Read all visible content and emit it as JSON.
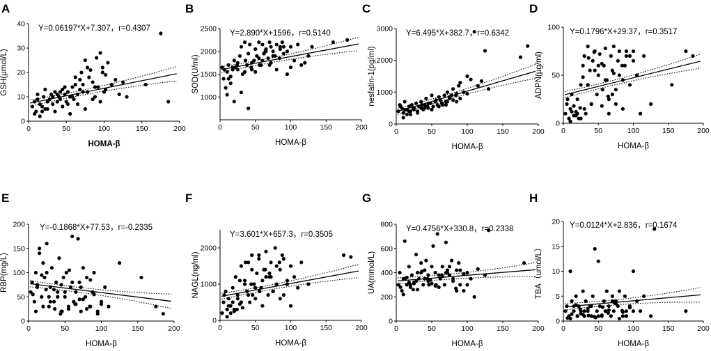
{
  "chart_data": [
    {
      "panel": "A",
      "type": "scatter",
      "equation": "Y=0.06197*X+7.307，r=0.4307",
      "slope": 0.06197,
      "intercept": 7.307,
      "xlabel": "HOMA-β",
      "ylabel": "GSH(μmol/L)",
      "xlim": [
        0,
        200
      ],
      "ylim": [
        0,
        40
      ],
      "xticks": [
        0,
        50,
        100,
        150,
        200
      ],
      "yticks": [
        0,
        10,
        20,
        30,
        40
      ],
      "x": [
        5,
        8,
        10,
        12,
        15,
        18,
        20,
        22,
        25,
        28,
        30,
        32,
        35,
        38,
        40,
        42,
        45,
        48,
        50,
        52,
        55,
        58,
        60,
        62,
        65,
        68,
        70,
        72,
        75,
        78,
        80,
        85,
        88,
        90,
        95,
        98,
        100,
        102,
        105,
        110,
        115,
        120,
        125,
        130,
        155,
        175,
        185,
        8,
        15,
        25,
        35,
        45,
        55,
        65,
        75,
        85,
        95,
        12,
        22,
        32,
        42,
        52,
        62,
        72,
        82,
        92,
        102,
        28,
        38,
        48,
        58,
        68,
        78,
        88,
        98,
        18
      ],
      "y": [
        6,
        8,
        4,
        9,
        7,
        6,
        10,
        5,
        8,
        9,
        11,
        7,
        12,
        8,
        10,
        9,
        13,
        11,
        8,
        12,
        10,
        14,
        9,
        15,
        11,
        13,
        20,
        12,
        25,
        22,
        18,
        16,
        14,
        26,
        28,
        20,
        12,
        19,
        24,
        15,
        17,
        11,
        16,
        10,
        15,
        36,
        8,
        3,
        2,
        5,
        4,
        6,
        3,
        7,
        5,
        9,
        8,
        11,
        13,
        10,
        12,
        7,
        18,
        15,
        21,
        14,
        13,
        9,
        11,
        14,
        10,
        17,
        12,
        10,
        22,
        4
      ]
    },
    {
      "panel": "B",
      "type": "scatter",
      "equation": "Y=2.890*X+1596，r=0.5140",
      "slope": 2.89,
      "intercept": 1596,
      "xlabel": "HOMA-β",
      "ylabel": "SOD(U/ml)",
      "xlim": [
        0,
        200
      ],
      "ylim": [
        500,
        2500
      ],
      "xticks": [
        0,
        50,
        100,
        150,
        200
      ],
      "yticks": [
        1000,
        1500,
        2000,
        2500
      ],
      "x": [
        3,
        5,
        8,
        10,
        12,
        15,
        18,
        20,
        22,
        25,
        28,
        30,
        32,
        35,
        38,
        40,
        42,
        45,
        48,
        50,
        52,
        55,
        58,
        60,
        62,
        65,
        68,
        70,
        72,
        75,
        78,
        80,
        85,
        88,
        90,
        95,
        100,
        105,
        110,
        115,
        120,
        125,
        130,
        160,
        180,
        10,
        20,
        30,
        40,
        50,
        60,
        70,
        80,
        90,
        100,
        15,
        25,
        35,
        45,
        55,
        65,
        75,
        85,
        95,
        6,
        12,
        18,
        24,
        36,
        44,
        56,
        64,
        72,
        84
      ],
      "y": [
        1650,
        1400,
        1200,
        1550,
        1700,
        1300,
        1600,
        1800,
        1650,
        1750,
        1900,
        2100,
        1500,
        2200,
        1700,
        1950,
        2150,
        1600,
        1800,
        2050,
        1900,
        2200,
        1700,
        2150,
        1950,
        2050,
        1850,
        2200,
        2100,
        2000,
        1900,
        2150,
        2050,
        2200,
        1950,
        2000,
        2100,
        1800,
        2150,
        1700,
        1750,
        1900,
        2100,
        2200,
        2250,
        1050,
        900,
        1100,
        750,
        1550,
        1800,
        1700,
        1600,
        2100,
        1650,
        1450,
        1600,
        1550,
        1750,
        1850,
        2000,
        1900,
        2100,
        1500,
        1600,
        1400,
        1650,
        1700,
        1800,
        1650,
        1700,
        2000,
        1750,
        1850
      ]
    },
    {
      "panel": "C",
      "type": "scatter",
      "equation": "Y=6.495*X+382.7，r=0.6342",
      "slope": 6.495,
      "intercept": 382.7,
      "xlabel": "HOMA-β",
      "ylabel": "nesfatin-1(pg/ml)",
      "xlim": [
        0,
        200
      ],
      "ylim": [
        0,
        3000
      ],
      "xticks": [
        0,
        50,
        100,
        150,
        200
      ],
      "yticks": [
        0,
        1000,
        2000,
        3000
      ],
      "x": [
        3,
        5,
        8,
        10,
        12,
        15,
        18,
        20,
        22,
        25,
        28,
        30,
        32,
        35,
        38,
        40,
        42,
        45,
        48,
        50,
        52,
        55,
        58,
        60,
        62,
        65,
        68,
        70,
        72,
        75,
        78,
        80,
        85,
        88,
        90,
        95,
        100,
        105,
        110,
        115,
        120,
        125,
        130,
        175,
        185,
        10,
        20,
        30,
        40,
        50,
        60,
        70,
        80,
        90,
        100,
        15,
        25,
        35,
        45,
        55,
        65,
        75,
        85,
        95,
        6,
        12,
        18,
        24,
        36,
        44,
        56,
        64,
        72,
        84
      ],
      "y": [
        400,
        600,
        500,
        350,
        700,
        450,
        550,
        300,
        600,
        500,
        650,
        400,
        550,
        700,
        450,
        600,
        800,
        500,
        650,
        900,
        550,
        700,
        600,
        850,
        750,
        650,
        900,
        700,
        1000,
        800,
        900,
        1100,
        950,
        1200,
        1300,
        1000,
        1500,
        1400,
        2900,
        1200,
        1350,
        2300,
        1100,
        2100,
        2450,
        200,
        400,
        350,
        500,
        450,
        550,
        600,
        750,
        800,
        950,
        300,
        450,
        500,
        650,
        700,
        600,
        850,
        700,
        1000,
        550,
        450,
        400,
        500,
        600,
        550,
        750,
        650,
        700,
        900
      ]
    },
    {
      "panel": "D",
      "type": "scatter",
      "equation": "Y=0.1796*X+29.37，r=0.3517",
      "slope": 0.1796,
      "intercept": 29.37,
      "xlabel": "HOMA-β",
      "ylabel": "ADPN(μg/ml)",
      "xlim": [
        0,
        200
      ],
      "ylim": [
        0,
        100
      ],
      "xticks": [
        0,
        50,
        100,
        150,
        200
      ],
      "yticks": [
        0,
        50,
        100
      ],
      "x": [
        3,
        5,
        8,
        10,
        12,
        15,
        18,
        20,
        22,
        25,
        28,
        30,
        32,
        35,
        38,
        40,
        42,
        45,
        48,
        50,
        52,
        55,
        58,
        60,
        62,
        65,
        68,
        70,
        72,
        75,
        78,
        80,
        85,
        88,
        90,
        95,
        100,
        105,
        110,
        115,
        125,
        155,
        175,
        185,
        10,
        20,
        30,
        40,
        50,
        60,
        70,
        80,
        90,
        100,
        15,
        25,
        35,
        45,
        55,
        65,
        75,
        85,
        95,
        6,
        12,
        18,
        24,
        36,
        44,
        56,
        64,
        72,
        84,
        28
      ],
      "y": [
        10,
        20,
        5,
        15,
        30,
        8,
        12,
        25,
        5,
        40,
        60,
        70,
        10,
        80,
        55,
        20,
        65,
        75,
        30,
        50,
        72,
        18,
        60,
        78,
        45,
        25,
        70,
        55,
        80,
        35,
        65,
        75,
        15,
        60,
        70,
        40,
        75,
        50,
        10,
        70,
        20,
        40,
        75,
        70,
        2,
        10,
        15,
        20,
        60,
        45,
        30,
        50,
        75,
        65,
        18,
        5,
        40,
        55,
        62,
        10,
        20,
        45,
        70,
        25,
        12,
        8,
        16,
        68,
        74,
        35,
        28,
        52,
        60,
        48
      ]
    },
    {
      "panel": "E",
      "type": "scatter",
      "equation": "Y=-0.1868*X+77.53，r=-0.2335",
      "slope": -0.1868,
      "intercept": 77.53,
      "xlabel": "HOMA-β",
      "ylabel": "RBP(mg/L)",
      "xlim": [
        0,
        200
      ],
      "ylim": [
        0,
        200
      ],
      "xticks": [
        0,
        50,
        100,
        150,
        200
      ],
      "yticks": [
        0,
        50,
        100,
        150,
        200
      ],
      "x": [
        3,
        5,
        8,
        10,
        12,
        15,
        18,
        20,
        22,
        25,
        28,
        30,
        32,
        35,
        38,
        40,
        42,
        45,
        48,
        50,
        52,
        55,
        58,
        60,
        62,
        65,
        68,
        70,
        72,
        75,
        78,
        80,
        85,
        88,
        90,
        95,
        100,
        105,
        110,
        125,
        155,
        175,
        185,
        10,
        20,
        30,
        40,
        50,
        60,
        70,
        80,
        90,
        100,
        15,
        25,
        35,
        45,
        55,
        65,
        75,
        85,
        95,
        6,
        12,
        18,
        24,
        36,
        44,
        56,
        64,
        72,
        84,
        28,
        46
      ],
      "y": [
        60,
        80,
        40,
        100,
        70,
        150,
        50,
        120,
        90,
        160,
        30,
        70,
        110,
        40,
        80,
        60,
        130,
        20,
        90,
        50,
        100,
        30,
        70,
        175,
        40,
        60,
        170,
        80,
        20,
        110,
        50,
        90,
        30,
        60,
        100,
        20,
        40,
        70,
        30,
        120,
        90,
        30,
        15,
        20,
        30,
        40,
        50,
        60,
        80,
        45,
        25,
        55,
        35,
        140,
        100,
        65,
        75,
        25,
        35,
        45,
        85,
        15,
        55,
        75,
        95,
        65,
        25,
        15,
        105,
        35,
        70,
        30,
        50,
        20
      ]
    },
    {
      "panel": "F",
      "type": "scatter",
      "equation": "Y=3.601*X+657.3，r=0.3505",
      "slope": 3.601,
      "intercept": 657.3,
      "xlabel": "HOMA-β",
      "ylabel": "NAGL(ng/ml)",
      "xlim": [
        0,
        200
      ],
      "ylim": [
        0,
        2500
      ],
      "xticks": [
        0,
        50,
        100,
        150,
        200
      ],
      "yticks": [
        0,
        1000,
        2000
      ],
      "x": [
        3,
        5,
        8,
        10,
        12,
        15,
        18,
        20,
        22,
        25,
        28,
        30,
        32,
        35,
        38,
        40,
        42,
        45,
        48,
        50,
        52,
        55,
        58,
        60,
        62,
        65,
        68,
        70,
        72,
        75,
        78,
        80,
        85,
        88,
        90,
        95,
        100,
        105,
        110,
        115,
        125,
        175,
        185,
        10,
        20,
        30,
        40,
        50,
        60,
        70,
        80,
        90,
        100,
        15,
        25,
        35,
        45,
        55,
        65,
        75,
        85,
        95,
        6,
        12,
        18,
        24,
        36,
        44,
        56,
        64,
        72,
        84,
        28,
        46
      ],
      "y": [
        200,
        500,
        800,
        300,
        600,
        400,
        900,
        250,
        1200,
        700,
        450,
        1500,
        350,
        1100,
        800,
        1600,
        500,
        1800,
        1000,
        600,
        1300,
        1700,
        900,
        400,
        1400,
        1900,
        700,
        1200,
        1600,
        800,
        2000,
        1000,
        1400,
        1800,
        700,
        1100,
        1500,
        1200,
        900,
        1600,
        1000,
        1800,
        1750,
        100,
        300,
        500,
        700,
        900,
        1100,
        1300,
        1500,
        1700,
        400,
        200,
        600,
        1000,
        1400,
        1800,
        1200,
        800,
        600,
        1000,
        700,
        400,
        500,
        300,
        1600,
        1000,
        800,
        1400,
        1200,
        1600,
        1100,
        700
      ]
    },
    {
      "panel": "G",
      "type": "scatter",
      "equation": "Y=0.4756*X+330.8，r=0.2338",
      "slope": 0.4756,
      "intercept": 330.8,
      "xlabel": "HOMA-β",
      "ylabel": "UA(mmol/L)",
      "xlim": [
        0,
        200
      ],
      "ylim": [
        0,
        800
      ],
      "xticks": [
        0,
        50,
        100,
        150,
        200
      ],
      "yticks": [
        0,
        200,
        400,
        600,
        800
      ],
      "x": [
        3,
        5,
        8,
        10,
        12,
        15,
        18,
        20,
        22,
        25,
        28,
        30,
        32,
        35,
        38,
        40,
        42,
        45,
        48,
        50,
        52,
        55,
        58,
        60,
        62,
        65,
        68,
        70,
        72,
        75,
        78,
        80,
        85,
        88,
        90,
        95,
        100,
        105,
        110,
        115,
        125,
        130,
        180,
        10,
        20,
        30,
        40,
        50,
        60,
        70,
        80,
        90,
        100,
        15,
        25,
        35,
        45,
        55,
        65,
        75,
        85,
        95,
        6,
        12,
        18,
        24,
        36,
        44,
        56,
        64,
        72,
        84,
        28,
        46
      ],
      "y": [
        300,
        400,
        250,
        350,
        660,
        300,
        450,
        280,
        380,
        320,
        550,
        400,
        350,
        480,
        300,
        420,
        500,
        380,
        340,
        450,
        620,
        400,
        720,
        380,
        350,
        450,
        300,
        650,
        400,
        380,
        500,
        350,
        420,
        480,
        300,
        250,
        400,
        350,
        200,
        430,
        380,
        750,
        480,
        220,
        300,
        260,
        350,
        310,
        280,
        400,
        330,
        420,
        300,
        360,
        310,
        400,
        330,
        290,
        370,
        450,
        250,
        390,
        280,
        350,
        320,
        260,
        410,
        350,
        300,
        380,
        420,
        270,
        330,
        300
      ]
    },
    {
      "panel": "H",
      "type": "scatter",
      "equation": "Y=0.0124*X+2.836，r=0.1674",
      "slope": 0.0124,
      "intercept": 2.836,
      "xlabel": "HOMA-β",
      "ylabel": "TBA（umol/L）",
      "xlim": [
        0,
        200
      ],
      "ylim": [
        0,
        20
      ],
      "xticks": [
        0,
        50,
        100,
        150,
        200
      ],
      "yticks": [
        0,
        5,
        10,
        15,
        20
      ],
      "x": [
        3,
        5,
        8,
        10,
        12,
        15,
        18,
        20,
        22,
        25,
        28,
        30,
        32,
        35,
        38,
        40,
        42,
        45,
        48,
        50,
        52,
        55,
        58,
        60,
        62,
        65,
        68,
        70,
        72,
        75,
        78,
        80,
        85,
        88,
        90,
        95,
        100,
        105,
        110,
        115,
        125,
        130,
        175,
        10,
        20,
        30,
        40,
        50,
        60,
        70,
        80,
        90,
        100,
        15,
        25,
        35,
        45,
        55,
        65,
        75,
        85,
        95,
        6,
        12,
        18,
        24,
        36,
        44,
        56,
        64,
        72,
        84,
        28,
        46
      ],
      "y": [
        2,
        3,
        1,
        10,
        4,
        2,
        5,
        1,
        3,
        2,
        6,
        1,
        4,
        2,
        3,
        1,
        5,
        14.5,
        2,
        12,
        3,
        1,
        4,
        2,
        6,
        3,
        1,
        5,
        2,
        4,
        3,
        6,
        1,
        5,
        2,
        3,
        10,
        4,
        2,
        5,
        1,
        18.5,
        2,
        0.5,
        1,
        2,
        3,
        1,
        2,
        4,
        0.5,
        1,
        2,
        3,
        1.5,
        2.5,
        0.8,
        1.2,
        2.2,
        3.5,
        1.8,
        2.7,
        0.6,
        1.4,
        3.2,
        2.4,
        1.1,
        0.9,
        2.8,
        1.6,
        3.8,
        2.1,
        1.3,
        0.7
      ]
    }
  ]
}
